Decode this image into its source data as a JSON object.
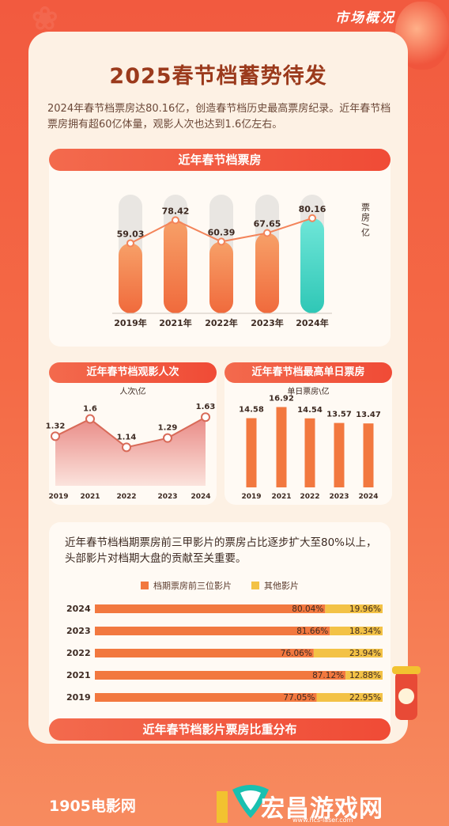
{
  "header": {
    "tag": "市场概况",
    "title": "2025春节档蓄势待发",
    "intro": "2024年春节档票房达80.16亿，创造春节档历史最高票房纪录。近年春节档票房拥有超60亿体量，观影人次也达到1.6亿左右。"
  },
  "colors": {
    "bar_orange": "#f2783f",
    "bar_teal": "#3ed2c4",
    "line": "#f3845a",
    "attendance_line": "#d86a58",
    "top3": "#f2783f",
    "others": "#f3c246",
    "banner": "#f04b36"
  },
  "chart_data": [
    {
      "type": "bar",
      "title": "近年春节档票房",
      "ylabel": "票房/亿",
      "categories": [
        "2019年",
        "2021年",
        "2022年",
        "2023年",
        "2024年"
      ],
      "values": [
        59.03,
        78.42,
        60.39,
        67.65,
        80.16
      ],
      "value_labels": [
        "59.03",
        "78.42",
        "60.39",
        "67.65",
        "80.16"
      ],
      "ylim": [
        0,
        100
      ],
      "grid": false
    },
    {
      "type": "area",
      "title": "近年春节档观影人次",
      "ylabel": "人次\\亿",
      "categories": [
        "2019",
        "2021",
        "2022",
        "2023",
        "2024"
      ],
      "values": [
        1.32,
        1.6,
        1.14,
        1.29,
        1.63
      ],
      "value_labels": [
        "1.32",
        "1.6",
        "1.14",
        "1.29",
        "1.63"
      ],
      "ylim": [
        0.9,
        1.8
      ]
    },
    {
      "type": "bar",
      "title": "近年春节档最高单日票房",
      "ylabel": "单日票房\\亿",
      "categories": [
        "2019",
        "2021",
        "2022",
        "2023",
        "2024"
      ],
      "values": [
        14.58,
        16.92,
        14.54,
        13.57,
        13.47
      ],
      "value_labels": [
        "14.58",
        "16.92",
        "14.54",
        "13.57",
        "13.47"
      ],
      "ylim": [
        0,
        20
      ]
    },
    {
      "type": "bar",
      "stacked": true,
      "title": "近年春节档影片票房比重分布",
      "subtitle": "近年春节档档期票房前三甲影片的票房占比逐步扩大至80%以上，头部影片对档期大盘的贡献至关重要。",
      "categories": [
        "2024",
        "2023",
        "2022",
        "2021",
        "2019"
      ],
      "series": [
        {
          "name": "档期票房前三位影片",
          "values": [
            80.04,
            81.66,
            76.06,
            87.12,
            77.05
          ],
          "value_labels": [
            "80.04%",
            "81.66%",
            "76.06%",
            "87.12%",
            "77.05%"
          ]
        },
        {
          "name": "其他影片",
          "values": [
            19.96,
            18.34,
            23.94,
            12.88,
            22.95
          ],
          "value_labels": [
            "19.96%",
            "18.34%",
            "23.94%",
            "12.88%",
            "22.95%"
          ]
        }
      ],
      "xlim": [
        0,
        100
      ],
      "legend": "top"
    }
  ],
  "footer": {
    "logo": "1905电影网",
    "site": "宏昌游戏网",
    "url": "www.hcs-laser.com"
  }
}
